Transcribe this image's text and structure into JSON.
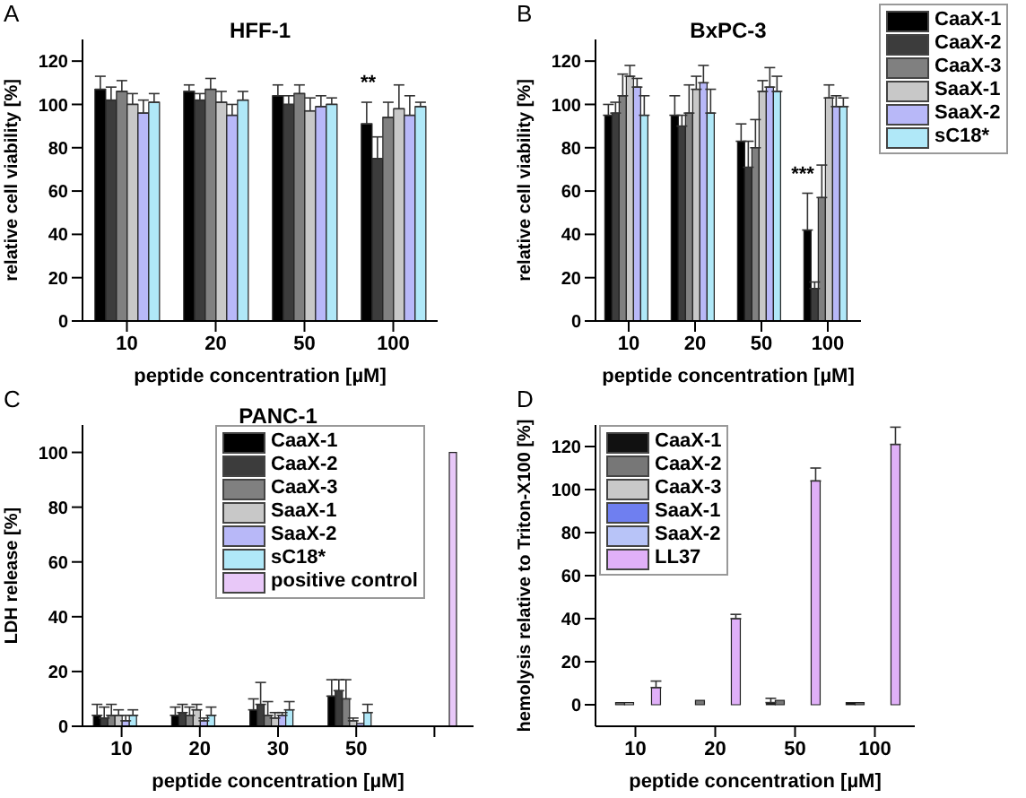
{
  "chart_data": [
    {
      "type": "bar",
      "title": "HFF-1",
      "xlabel": "peptide concentration [µM]",
      "ylabel": "relative cell viability [%]",
      "categories": [
        "10",
        "20",
        "50",
        "100"
      ],
      "series": [
        {
          "color": "#000000",
          "values": [
            107,
            106,
            104,
            91
          ],
          "errors": [
            6,
            3,
            5,
            10
          ]
        },
        {
          "color": "#3c3c3c",
          "values": [
            102,
            102,
            100,
            75
          ],
          "errors": [
            6,
            3,
            4,
            10
          ]
        },
        {
          "color": "#808080",
          "values": [
            106,
            107,
            105,
            94
          ],
          "errors": [
            5,
            5,
            4,
            7
          ]
        },
        {
          "color": "#c8c8c8",
          "values": [
            100,
            101,
            97,
            98
          ],
          "errors": [
            5,
            5,
            6,
            11
          ]
        },
        {
          "color": "#b8b8f8",
          "values": [
            96,
            95,
            99,
            95
          ],
          "errors": [
            6,
            5,
            5,
            9
          ]
        },
        {
          "color": "#b0e8f8",
          "values": [
            101,
            102,
            100,
            99
          ],
          "errors": [
            4,
            4,
            3,
            2
          ]
        }
      ],
      "ylim": [
        0,
        130
      ],
      "yticks": [
        0,
        20,
        40,
        60,
        80,
        100,
        120
      ],
      "grid": false,
      "legend": false,
      "annotations": [
        "A",
        {
          "text": "**",
          "x": "100",
          "y": 103
        }
      ]
    },
    {
      "type": "bar",
      "title": "BxPC-3",
      "xlabel": "peptide concentration [µM]",
      "ylabel": "relative cell viability [%]",
      "categories": [
        "10",
        "20",
        "50",
        "100"
      ],
      "series": [
        {
          "name": "CaaX-1",
          "color": "#000000",
          "values": [
            95,
            95,
            83,
            42
          ],
          "errors": [
            5,
            9,
            8,
            17
          ]
        },
        {
          "name": "CaaX-2",
          "color": "#3c3c3c",
          "values": [
            96,
            90,
            71,
            15
          ],
          "errors": [
            5,
            5,
            12,
            3
          ]
        },
        {
          "name": "CaaX-3",
          "color": "#808080",
          "values": [
            104,
            96,
            80,
            57
          ],
          "errors": [
            10,
            13,
            13,
            15
          ]
        },
        {
          "name": "SaaX-1",
          "color": "#c8c8c8",
          "values": [
            113,
            107,
            106,
            103
          ],
          "errors": [
            5,
            6,
            5,
            6
          ]
        },
        {
          "name": "SaaX-2",
          "color": "#b8b8f8",
          "values": [
            108,
            110,
            108,
            99
          ],
          "errors": [
            4,
            8,
            9,
            5
          ]
        },
        {
          "name": "sC18*",
          "color": "#b0e8f8",
          "values": [
            95,
            96,
            106,
            99
          ],
          "errors": [
            9,
            11,
            7,
            4
          ]
        }
      ],
      "ylim": [
        0,
        130
      ],
      "yticks": [
        0,
        20,
        40,
        60,
        80,
        100,
        120
      ],
      "grid": false,
      "legend": "right",
      "annotations": [
        "B",
        {
          "text": "***",
          "x": "100",
          "y": 61
        }
      ]
    },
    {
      "type": "bar",
      "title": "PANC-1",
      "xlabel": "peptide concentration [µM]",
      "ylabel": "LDH release [%]",
      "categories": [
        "10",
        "20",
        "30",
        "50",
        null
      ],
      "series": [
        {
          "name": "CaaX-1",
          "color": "#000000",
          "values": [
            4,
            4,
            6,
            11,
            null
          ],
          "errors": [
            4,
            3,
            4,
            6,
            null
          ]
        },
        {
          "name": "CaaX-2",
          "color": "#3c3c3c",
          "values": [
            3,
            5,
            8,
            13,
            null
          ],
          "errors": [
            4,
            3,
            8,
            4,
            null
          ]
        },
        {
          "name": "CaaX-3",
          "color": "#808080",
          "values": [
            4,
            4,
            4,
            10,
            null
          ],
          "errors": [
            4,
            3,
            5,
            7,
            null
          ]
        },
        {
          "name": "SaaX-1",
          "color": "#c8c8c8",
          "values": [
            4,
            6,
            3,
            2,
            null
          ],
          "errors": [
            2,
            2,
            2,
            1,
            null
          ]
        },
        {
          "name": "SaaX-2",
          "color": "#b8b8f8",
          "values": [
            2,
            2,
            4,
            1,
            null
          ],
          "errors": [
            2,
            1,
            1,
            null,
            null
          ]
        },
        {
          "name": "sC18*",
          "color": "#b0e8f8",
          "values": [
            4,
            4,
            6,
            5,
            null
          ],
          "errors": [
            2,
            3,
            3,
            3,
            null
          ]
        },
        {
          "name": "positive control",
          "color": "#e8c8f8",
          "values": [
            null,
            null,
            null,
            null,
            100
          ]
        }
      ],
      "ylim": [
        0,
        110
      ],
      "yticks": [
        0,
        20,
        40,
        60,
        80,
        100
      ],
      "grid": false,
      "legend": "top right",
      "annotations": [
        "C"
      ]
    },
    {
      "type": "bar",
      "xlabel": "peptide concentration [µM]",
      "ylabel": "hemolysis relative to Triton-X100 [%]",
      "categories": [
        "10",
        "20",
        "50",
        "100"
      ],
      "series": [
        {
          "name": "CaaX-1",
          "color": "#111111",
          "values": [
            0,
            0,
            1,
            1
          ],
          "errors": [
            null,
            null,
            2,
            null
          ]
        },
        {
          "name": "CaaX-2",
          "color": "#777777",
          "values": [
            1,
            2,
            2,
            1
          ]
        },
        {
          "name": "CaaX-3",
          "color": "#c8c8c8",
          "values": [
            1,
            0,
            0,
            0
          ]
        },
        {
          "name": "SaaX-1",
          "color": "#6f7ff0",
          "values": [
            0,
            0,
            0,
            0
          ]
        },
        {
          "name": "SaaX-2",
          "color": "#b8c4f8",
          "values": [
            0,
            0,
            0,
            0
          ]
        },
        {
          "name": "LL37",
          "color": "#e0b0f8",
          "values": [
            8,
            40,
            104,
            121
          ],
          "errors": [
            3,
            2,
            6,
            8
          ]
        }
      ],
      "ylim": [
        -10,
        130
      ],
      "yticks": [
        0,
        20,
        40,
        60,
        80,
        100,
        120
      ],
      "grid": false,
      "legend": "top left",
      "annotations": [
        "D"
      ]
    }
  ]
}
